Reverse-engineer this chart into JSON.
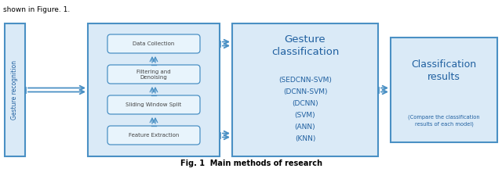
{
  "title": "Fig. 1  Main methods of research",
  "bg_color": "#ffffff",
  "box_light_blue": "#daeaf7",
  "box_border_blue": "#4a90c4",
  "text_blue": "#2060a0",
  "text_dark": "#444444",
  "gesture_recognition_text": "Gesture recognition",
  "preprocessing_steps": [
    "Data Collection",
    "Filtering and\nDenoising",
    "Sliding Window Split",
    "Feature Extraction"
  ],
  "classification_title": "Gesture\nclassification",
  "classification_methods": [
    "(SEDCNN-SVM)",
    "(DCNN-SVM)",
    "(DCNN)",
    "(SVM)",
    "(ANN)",
    "(KNN)"
  ],
  "results_title": "Classification\nresults",
  "results_subtitle": "(Compare the classification\nresults of each model)"
}
